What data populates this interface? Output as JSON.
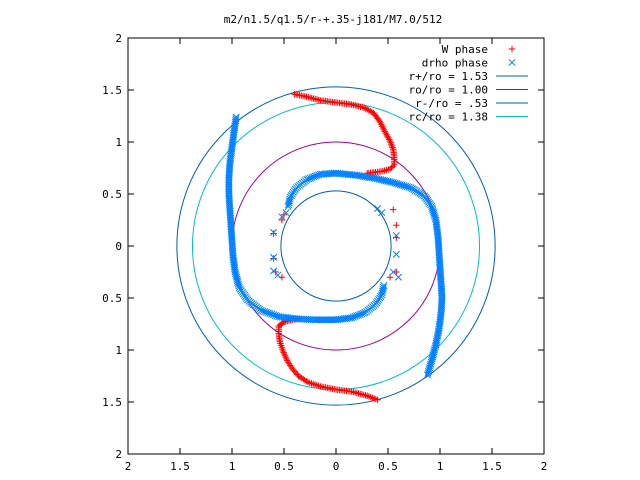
{
  "chart_data": {
    "type": "scatter",
    "title": "m2/n1.5/q1.5/r-+.35-j181/M7.0/512",
    "xlim": [
      -2,
      2
    ],
    "ylim": [
      -2,
      2
    ],
    "xticks": [
      {
        "v": -2,
        "label": "2"
      },
      {
        "v": -1.5,
        "label": "1.5"
      },
      {
        "v": -1,
        "label": "1"
      },
      {
        "v": -0.5,
        "label": "0.5"
      },
      {
        "v": 0,
        "label": "0"
      },
      {
        "v": 0.5,
        "label": "0.5"
      },
      {
        "v": 1,
        "label": "1"
      },
      {
        "v": 1.5,
        "label": "1.5"
      },
      {
        "v": 2,
        "label": "2"
      }
    ],
    "yticks": [
      {
        "v": 2,
        "label": "2"
      },
      {
        "v": 1.5,
        "label": "1.5"
      },
      {
        "v": 1,
        "label": "1"
      },
      {
        "v": 0.5,
        "label": "0.5"
      },
      {
        "v": 0,
        "label": "0"
      },
      {
        "v": -0.5,
        "label": "0.5"
      },
      {
        "v": -1,
        "label": "1"
      },
      {
        "v": -1.5,
        "label": "1.5"
      },
      {
        "v": -2,
        "label": "2"
      }
    ],
    "grid": false,
    "legend_position": "top-right",
    "series": [
      {
        "name": "W phase",
        "marker": "plus",
        "color": "#ff0000",
        "segments": [
          [
            [
              -0.4,
              1.46
            ],
            [
              -0.3,
              1.44
            ],
            [
              -0.15,
              1.4
            ],
            [
              0.0,
              1.38
            ],
            [
              0.15,
              1.36
            ],
            [
              0.27,
              1.33
            ],
            [
              0.36,
              1.28
            ],
            [
              0.42,
              1.2
            ],
            [
              0.47,
              1.1
            ],
            [
              0.52,
              1.01
            ],
            [
              0.55,
              0.93
            ],
            [
              0.56,
              0.85
            ],
            [
              0.56,
              0.78
            ],
            [
              0.52,
              0.74
            ],
            [
              0.45,
              0.72
            ],
            [
              0.38,
              0.71
            ],
            [
              0.3,
              0.7
            ]
          ],
          [
            [
              0.4,
              -1.48
            ],
            [
              0.3,
              -1.44
            ],
            [
              0.15,
              -1.4
            ],
            [
              0.0,
              -1.38
            ],
            [
              -0.15,
              -1.35
            ],
            [
              -0.27,
              -1.31
            ],
            [
              -0.36,
              -1.25
            ],
            [
              -0.42,
              -1.18
            ],
            [
              -0.47,
              -1.1
            ],
            [
              -0.51,
              -1.01
            ],
            [
              -0.54,
              -0.92
            ],
            [
              -0.55,
              -0.84
            ],
            [
              -0.55,
              -0.77
            ],
            [
              -0.5,
              -0.73
            ],
            [
              -0.42,
              -0.71
            ],
            [
              -0.35,
              -0.7
            ]
          ],
          [
            [
              -0.5,
              0.3
            ],
            [
              -0.52,
              0.25
            ],
            [
              -0.6,
              0.12
            ],
            [
              -0.6,
              -0.12
            ],
            [
              -0.58,
              -0.25
            ],
            [
              -0.52,
              -0.3
            ],
            [
              0.55,
              0.35
            ],
            [
              0.58,
              0.2
            ],
            [
              0.58,
              0.08
            ],
            [
              0.52,
              -0.3
            ],
            [
              0.58,
              -0.25
            ]
          ]
        ]
      },
      {
        "name": "drho phase",
        "marker": "x",
        "color": "#0080ff",
        "segments": [
          [
            [
              -0.96,
              1.24
            ],
            [
              -0.98,
              1.1
            ],
            [
              -1.0,
              0.95
            ],
            [
              -1.02,
              0.8
            ],
            [
              -1.03,
              0.65
            ],
            [
              -1.03,
              0.5
            ],
            [
              -1.02,
              0.35
            ],
            [
              -1.01,
              0.2
            ],
            [
              -1.0,
              0.05
            ],
            [
              -0.99,
              -0.1
            ],
            [
              -0.97,
              -0.25
            ],
            [
              -0.93,
              -0.4
            ],
            [
              -0.85,
              -0.52
            ],
            [
              -0.72,
              -0.62
            ],
            [
              -0.55,
              -0.68
            ],
            [
              -0.38,
              -0.7
            ],
            [
              -0.2,
              -0.71
            ],
            [
              0.0,
              -0.71
            ],
            [
              0.15,
              -0.69
            ],
            [
              0.28,
              -0.64
            ],
            [
              0.38,
              -0.56
            ],
            [
              0.44,
              -0.47
            ],
            [
              0.46,
              -0.38
            ]
          ],
          [
            [
              0.88,
              -1.24
            ],
            [
              0.92,
              -1.1
            ],
            [
              0.96,
              -0.95
            ],
            [
              0.99,
              -0.8
            ],
            [
              1.01,
              -0.65
            ],
            [
              1.02,
              -0.5
            ],
            [
              1.01,
              -0.35
            ],
            [
              1.0,
              -0.2
            ],
            [
              0.99,
              -0.05
            ],
            [
              0.98,
              0.1
            ],
            [
              0.96,
              0.25
            ],
            [
              0.92,
              0.38
            ],
            [
              0.85,
              0.48
            ],
            [
              0.72,
              0.56
            ],
            [
              0.55,
              0.61
            ],
            [
              0.38,
              0.65
            ],
            [
              0.2,
              0.68
            ],
            [
              0.0,
              0.7
            ],
            [
              -0.15,
              0.69
            ],
            [
              -0.28,
              0.64
            ],
            [
              -0.38,
              0.56
            ],
            [
              -0.44,
              0.47
            ],
            [
              -0.46,
              0.38
            ]
          ],
          [
            [
              -0.6,
              0.13
            ],
            [
              -0.6,
              -0.11
            ],
            [
              -0.6,
              -0.24
            ],
            [
              -0.56,
              -0.28
            ],
            [
              -0.52,
              0.28
            ],
            [
              -0.48,
              0.32
            ],
            [
              0.4,
              0.36
            ],
            [
              0.44,
              0.32
            ],
            [
              0.58,
              0.1
            ],
            [
              0.58,
              -0.08
            ],
            [
              0.55,
              -0.25
            ],
            [
              0.6,
              -0.3
            ]
          ]
        ]
      }
    ],
    "circles": [
      {
        "name": "r+/ro = 1.53",
        "r": 1.53,
        "color": "#0060ad"
      },
      {
        "name": "ro/ro = 1.00",
        "r": 1.0,
        "color": "#a000a0"
      },
      {
        "name": "r-/ro = .53",
        "r": 0.53,
        "color": "#0060ad"
      },
      {
        "name": "rc/ro = 1.38",
        "r": 1.38,
        "color": "#00c0c0"
      }
    ]
  }
}
